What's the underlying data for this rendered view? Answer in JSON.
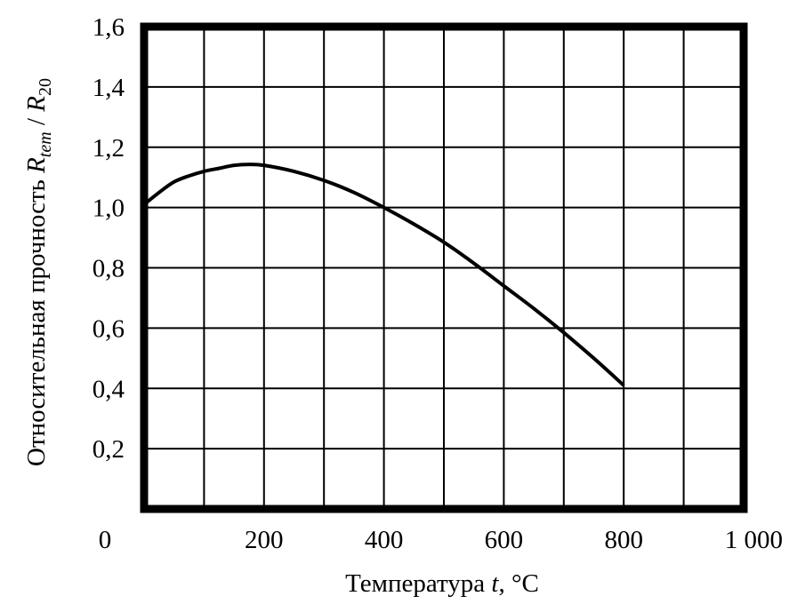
{
  "chart_data": {
    "type": "line",
    "xlabel": {
      "prefix": "Температура ",
      "symbol": "t",
      "suffix": ", °C"
    },
    "ylabel": {
      "prefix": "Относительная прочность ",
      "num_symbol": "R",
      "num_sub": "tem",
      "separator": " / ",
      "den_symbol": "R",
      "den_sub": "20"
    },
    "xlim": [
      0,
      1000
    ],
    "ylim": [
      0,
      1.6
    ],
    "x_grid_step": 100,
    "y_grid_step": 0.2,
    "x_tick_labels": [
      {
        "value": 0,
        "label": "0"
      },
      {
        "value": 200,
        "label": "200"
      },
      {
        "value": 400,
        "label": "400"
      },
      {
        "value": 600,
        "label": "600"
      },
      {
        "value": 800,
        "label": "800"
      },
      {
        "value": 1000,
        "label": "1 000"
      }
    ],
    "y_tick_labels": [
      {
        "value": 0.2,
        "label": "0,2"
      },
      {
        "value": 0.4,
        "label": "0,4"
      },
      {
        "value": 0.6,
        "label": "0,6"
      },
      {
        "value": 0.8,
        "label": "0,8"
      },
      {
        "value": 1.0,
        "label": "1,0"
      },
      {
        "value": 1.2,
        "label": "1,2"
      },
      {
        "value": 1.4,
        "label": "1,4"
      },
      {
        "value": 1.6,
        "label": "1,6"
      }
    ],
    "grid": true,
    "legend": "none",
    "series": [
      {
        "x": [
          0,
          25,
          50,
          75,
          100,
          125,
          150,
          175,
          200,
          250,
          300,
          350,
          400,
          450,
          500,
          550,
          600,
          650,
          700,
          750,
          800
        ],
        "y": [
          1.01,
          1.05,
          1.085,
          1.105,
          1.12,
          1.13,
          1.14,
          1.143,
          1.14,
          1.12,
          1.09,
          1.05,
          1.0,
          0.945,
          0.885,
          0.815,
          0.74,
          0.665,
          0.585,
          0.5,
          0.41
        ]
      }
    ],
    "colors": {
      "frame": "#000000",
      "grid": "#000000",
      "line": "#000000",
      "background": "#ffffff"
    }
  }
}
